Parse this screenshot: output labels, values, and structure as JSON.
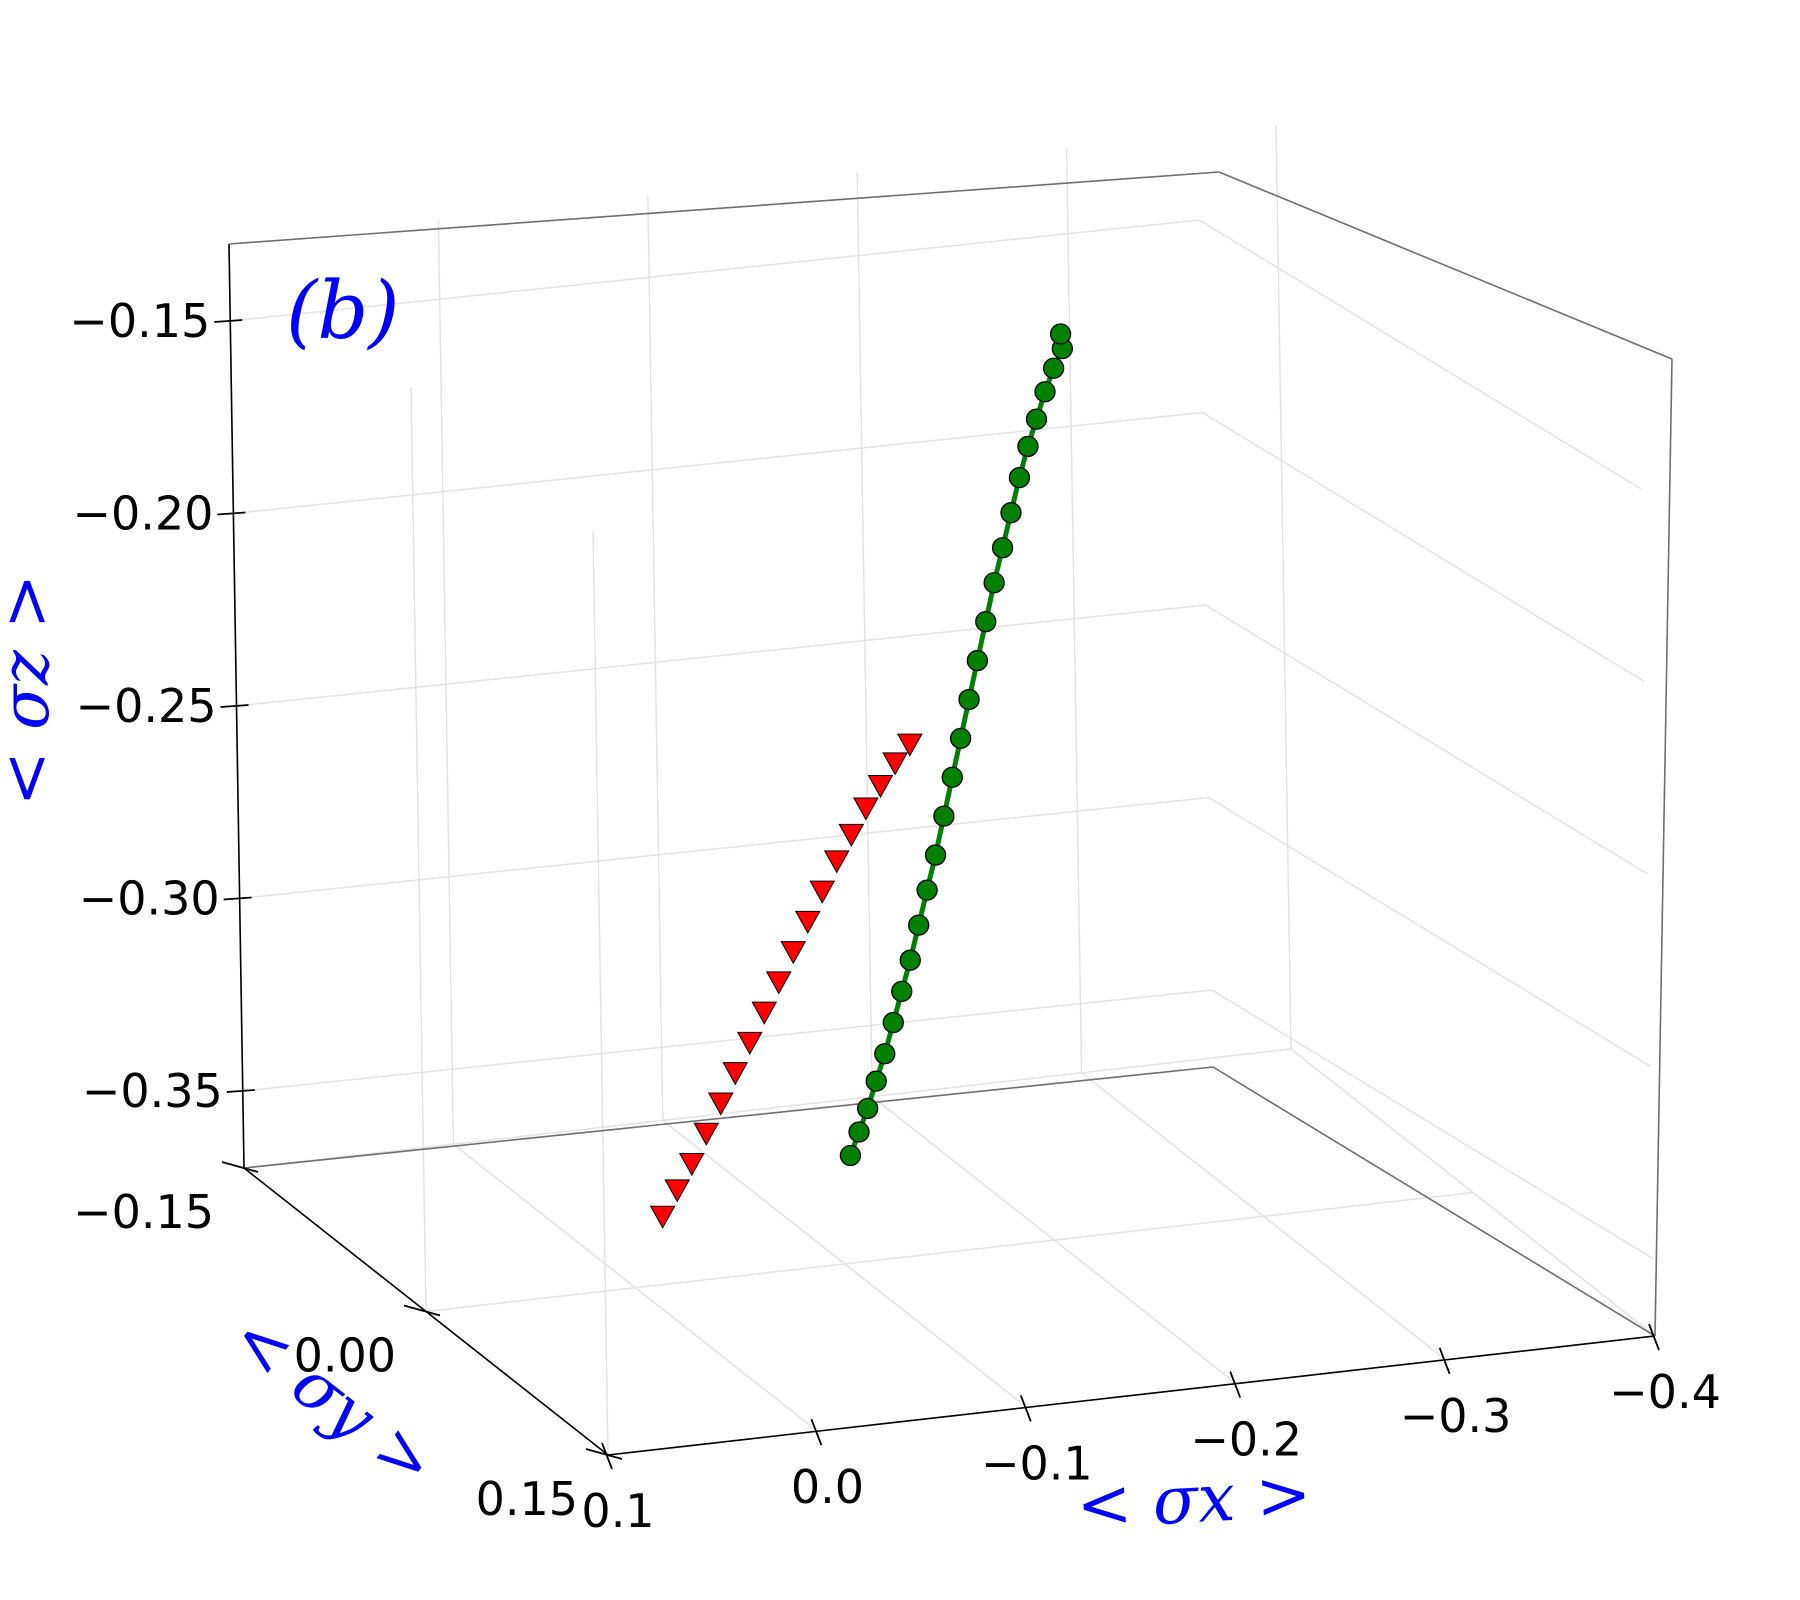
{
  "panel_label": "(b)",
  "chart_data": {
    "type": "scatter",
    "projection": "3d",
    "xlabel": "< σx >",
    "ylabel": "< σy >",
    "zlabel": "< σz >",
    "xlim": [
      0.1,
      -0.4
    ],
    "ylim": [
      -0.15,
      0.15
    ],
    "zlim": [
      -0.37,
      -0.13
    ],
    "x_ticks": [
      "0.1",
      "0.0",
      "−0.1",
      "−0.2",
      "−0.3",
      "−0.4"
    ],
    "y_ticks": [
      "−0.15",
      "0.00",
      "0.15"
    ],
    "z_ticks": [
      "−0.15",
      "−0.20",
      "−0.25",
      "−0.30",
      "−0.35"
    ],
    "grid": true,
    "series": [
      {
        "marker": "circle",
        "color": "#008000",
        "line": true,
        "points": [
          [
            -0.035,
            0.12,
            -0.308
          ],
          [
            -0.045,
            0.11,
            -0.305
          ],
          [
            -0.055,
            0.1,
            -0.302
          ],
          [
            -0.065,
            0.09,
            -0.298
          ],
          [
            -0.075,
            0.08,
            -0.294
          ],
          [
            -0.085,
            0.07,
            -0.289
          ],
          [
            -0.095,
            0.06,
            -0.284
          ],
          [
            -0.105,
            0.05,
            -0.279
          ],
          [
            -0.115,
            0.04,
            -0.273
          ],
          [
            -0.125,
            0.03,
            -0.267
          ],
          [
            -0.135,
            0.02,
            -0.261
          ],
          [
            -0.145,
            0.01,
            -0.254
          ],
          [
            -0.155,
            0.0,
            -0.247
          ],
          [
            -0.165,
            -0.01,
            -0.24
          ],
          [
            -0.175,
            -0.02,
            -0.233
          ],
          [
            -0.185,
            -0.03,
            -0.226
          ],
          [
            -0.195,
            -0.04,
            -0.219
          ],
          [
            -0.205,
            -0.05,
            -0.212
          ],
          [
            -0.215,
            -0.06,
            -0.206
          ],
          [
            -0.225,
            -0.07,
            -0.2
          ],
          [
            -0.235,
            -0.08,
            -0.194
          ],
          [
            -0.245,
            -0.09,
            -0.189
          ],
          [
            -0.255,
            -0.1,
            -0.185
          ],
          [
            -0.265,
            -0.11,
            -0.181
          ],
          [
            -0.275,
            -0.12,
            -0.178
          ],
          [
            -0.285,
            -0.13,
            -0.176
          ],
          [
            -0.29,
            -0.14,
            -0.175
          ]
        ]
      },
      {
        "marker": "triangle-down",
        "color": "#ff0000",
        "line": false,
        "points": [
          [
            0.015,
            0.05,
            -0.338
          ],
          [
            0.005,
            0.045,
            -0.333
          ],
          [
            -0.005,
            0.04,
            -0.328
          ],
          [
            -0.015,
            0.035,
            -0.322
          ],
          [
            -0.025,
            0.03,
            -0.316
          ],
          [
            -0.035,
            0.025,
            -0.31
          ],
          [
            -0.045,
            0.02,
            -0.304
          ],
          [
            -0.055,
            0.015,
            -0.298
          ],
          [
            -0.065,
            0.01,
            -0.292
          ],
          [
            -0.075,
            0.005,
            -0.286
          ],
          [
            -0.085,
            0.0,
            -0.28
          ],
          [
            -0.095,
            -0.005,
            -0.274
          ],
          [
            -0.105,
            -0.01,
            -0.268
          ],
          [
            -0.115,
            -0.015,
            -0.263
          ],
          [
            -0.125,
            -0.02,
            -0.258
          ],
          [
            -0.135,
            -0.025,
            -0.254
          ],
          [
            -0.145,
            -0.03,
            -0.25
          ],
          [
            -0.155,
            -0.035,
            -0.247
          ]
        ]
      }
    ]
  }
}
